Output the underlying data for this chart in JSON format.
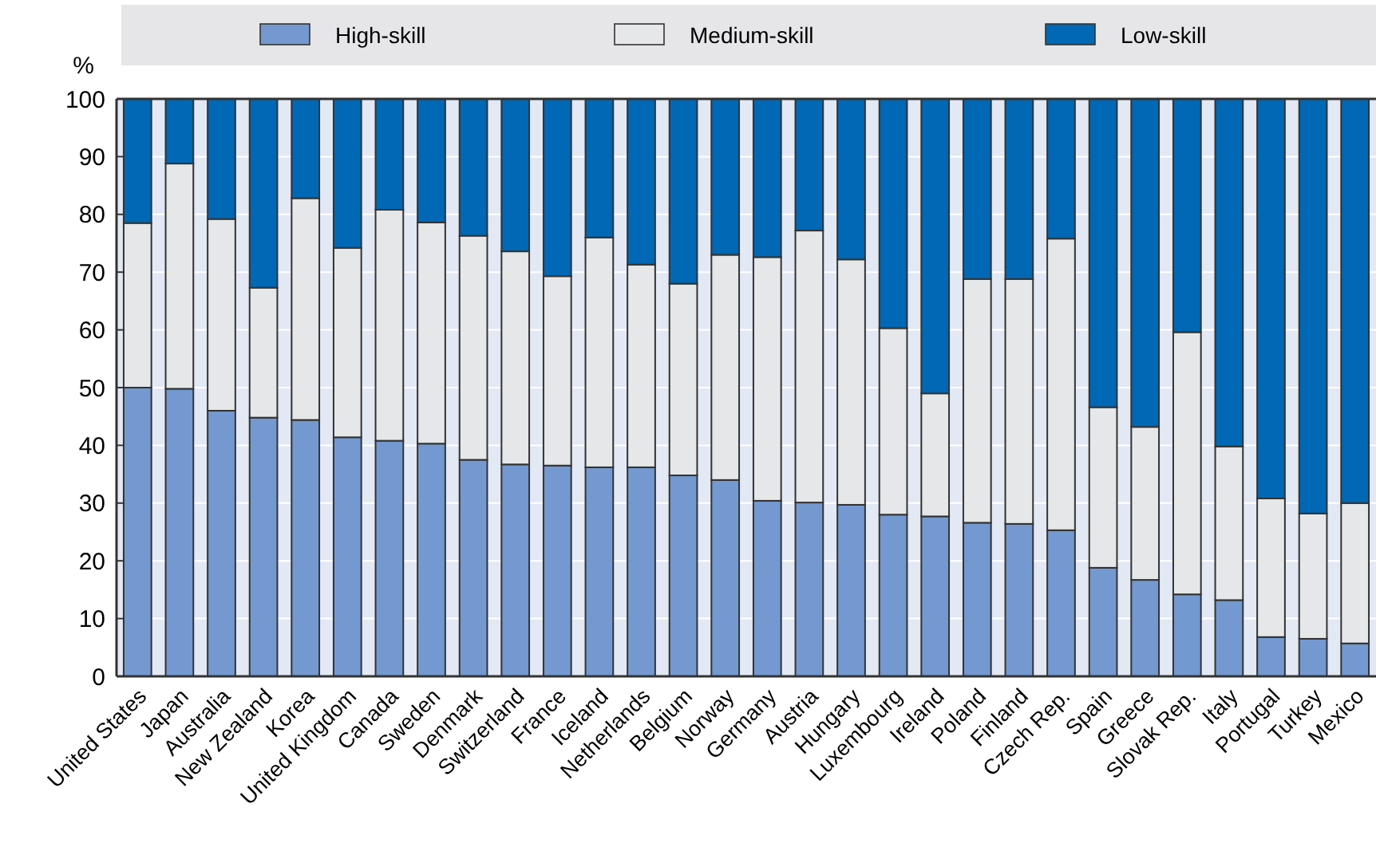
{
  "chart_data": {
    "type": "bar",
    "stacked": true,
    "ylabel": "%",
    "legend": "top",
    "grid": "y",
    "categories": [
      "United States",
      "Japan",
      "Australia",
      "New Zealand",
      "Korea",
      "United Kingdom",
      "Canada",
      "Sweden",
      "Denmark",
      "Switzerland",
      "France",
      "Iceland",
      "Netherlands",
      "Belgium",
      "Norway",
      "Germany",
      "Austria",
      "Hungary",
      "Luxembourg",
      "Ireland",
      "Poland",
      "Finland",
      "Czech Rep.",
      "Spain",
      "Greece",
      "Slovak Rep.",
      "Italy",
      "Portugal",
      "Turkey",
      "Mexico"
    ],
    "ylim": [
      0,
      100
    ],
    "yticks": [
      0,
      10,
      20,
      30,
      40,
      50,
      60,
      70,
      80,
      90,
      100
    ],
    "series": [
      {
        "name": "High-skill",
        "color": "#7399d0",
        "values": [
          50,
          49.8,
          46,
          44.8,
          44.4,
          41.4,
          40.8,
          40.3,
          37.5,
          36.7,
          36.5,
          36.2,
          36.2,
          34.8,
          34,
          30.4,
          30.1,
          29.7,
          28,
          27.7,
          26.6,
          26.4,
          25.3,
          18.8,
          16.7,
          14.2,
          13.2,
          6.8,
          6.5,
          5.7
        ]
      },
      {
        "name": "Medium-skill",
        "color": "#e6e7e8",
        "values": [
          28.5,
          39,
          33.2,
          22.5,
          38.4,
          32.8,
          40,
          38.3,
          38.8,
          36.9,
          32.8,
          39.8,
          35.1,
          33.2,
          39,
          42.2,
          47.1,
          42.5,
          32.3,
          21.3,
          42.2,
          42.4,
          50.5,
          27.8,
          26.5,
          45.4,
          26.6,
          24,
          21.7,
          24.3
        ]
      },
      {
        "name": "Low-skill",
        "color": "#0068b4",
        "values": [
          21.5,
          11.2,
          20.8,
          32.7,
          17.2,
          25.8,
          19.2,
          21.4,
          23.7,
          26.4,
          30.7,
          24,
          28.7,
          32,
          27,
          27.4,
          22.8,
          27.8,
          39.7,
          51,
          31.2,
          31.2,
          24.2,
          53.4,
          56.8,
          40.4,
          60.2,
          69.2,
          71.8,
          70
        ]
      }
    ]
  }
}
